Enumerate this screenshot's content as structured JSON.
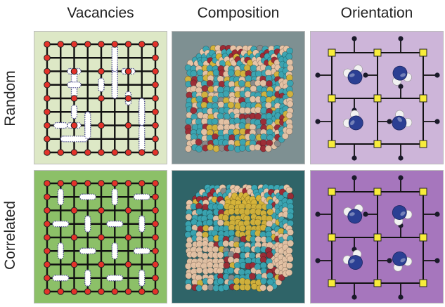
{
  "columns": [
    "Vacancies",
    "Composition",
    "Orientation"
  ],
  "rows": [
    "Random",
    "Correlated"
  ],
  "colors": {
    "vac_random_bg": "#dde8c6",
    "vac_correlated_bg": "#8cc068",
    "comp_random_bg": "#7e9092",
    "comp_correlated_bg": "#2f6468",
    "orient_random_bg": "#cdb5d9",
    "orient_correlated_bg": "#a676bd",
    "lattice_line": "#111111",
    "atom_red": "#e4332a",
    "node_yellow": "#f7ec3a",
    "molecule_blue": "#2b3f93",
    "molecule_white": "#f2f2f2",
    "sphere_teal": "#3aa6b3",
    "sphere_peach": "#e8c4a6",
    "sphere_red": "#9e2a34",
    "sphere_yellow": "#d6b43a",
    "sphere_gray": "#8a8a8a"
  },
  "icons": [
    "lattice-grid-icon",
    "vacancy-blob-icon",
    "atom-cube-icon",
    "water-molecule-icon"
  ]
}
